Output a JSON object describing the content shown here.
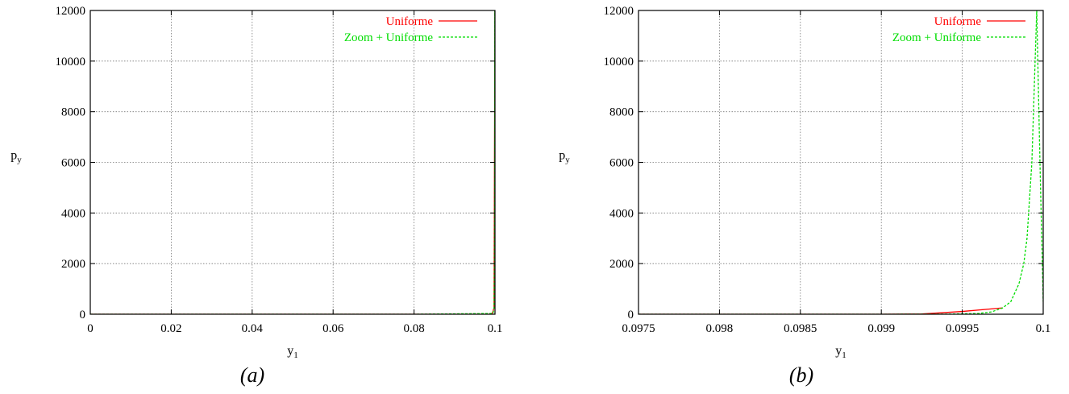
{
  "chart_data": [
    {
      "panel": "a",
      "type": "line",
      "caption": "(a)",
      "xlabel": "y",
      "xlabel_sub": "1",
      "ylabel": "p",
      "ylabel_sub": "y",
      "xlim": [
        0,
        0.1
      ],
      "ylim": [
        0,
        12000
      ],
      "xticks": [
        0,
        0.02,
        0.04,
        0.06,
        0.08,
        0.1
      ],
      "xtick_labels": [
        "0",
        "0.02",
        "0.04",
        "0.06",
        "0.08",
        "0.1"
      ],
      "yticks": [
        0,
        2000,
        4000,
        6000,
        8000,
        10000,
        12000
      ],
      "ytick_labels": [
        "0",
        "2000",
        "4000",
        "6000",
        "8000",
        "10000",
        "12000"
      ],
      "grid": true,
      "legend_position": "top-right",
      "series": [
        {
          "name": "Uniforme",
          "color": "#ff0000",
          "dash": "solid",
          "x": [
            0,
            0.02,
            0.04,
            0.06,
            0.08,
            0.099,
            0.09925,
            0.0995,
            0.09975,
            0.1
          ],
          "y": [
            0,
            0,
            0,
            0,
            0,
            0,
            10,
            110,
            250,
            12000
          ]
        },
        {
          "name": "Zoom + Uniforme",
          "color": "#00dd00",
          "dash": "dashed",
          "x": [
            0,
            0.02,
            0.04,
            0.06,
            0.08,
            0.0995,
            0.09975,
            0.09985,
            0.0999,
            0.09995,
            0.1
          ],
          "y": [
            0,
            0,
            0,
            0,
            0,
            30,
            250,
            1800,
            4500,
            12000,
            500
          ]
        }
      ]
    },
    {
      "panel": "b",
      "type": "line",
      "caption": "(b)",
      "xlabel": "y",
      "xlabel_sub": "1",
      "ylabel": "p",
      "ylabel_sub": "y",
      "xlim": [
        0.0975,
        0.1
      ],
      "ylim": [
        0,
        12000
      ],
      "xticks": [
        0.0975,
        0.098,
        0.0985,
        0.099,
        0.0995,
        0.1
      ],
      "xtick_labels": [
        "0.0975",
        "0.098",
        "0.0985",
        "0.099",
        "0.0995",
        "0.1"
      ],
      "yticks": [
        0,
        2000,
        4000,
        6000,
        8000,
        10000,
        12000
      ],
      "ytick_labels": [
        "0",
        "2000",
        "4000",
        "6000",
        "8000",
        "10000",
        "12000"
      ],
      "grid": true,
      "legend_position": "top-right",
      "series": [
        {
          "name": "Uniforme",
          "color": "#ff0000",
          "dash": "solid",
          "x": [
            0.0975,
            0.098,
            0.0985,
            0.099,
            0.09925,
            0.0995,
            0.09975
          ],
          "y": [
            0,
            0,
            0,
            0,
            10,
            110,
            250
          ]
        },
        {
          "name": "Zoom + Uniforme",
          "color": "#00dd00",
          "dash": "dashed",
          "x": [
            0.0975,
            0.098,
            0.0985,
            0.099,
            0.0994,
            0.0996,
            0.09968,
            0.09975,
            0.0998,
            0.09985,
            0.09988,
            0.0999,
            0.09993,
            0.09995,
            0.09996,
            0.09998,
            0.1
          ],
          "y": [
            0,
            0,
            0,
            0,
            5,
            30,
            90,
            250,
            500,
            1200,
            2000,
            3000,
            6000,
            10000,
            12000,
            6000,
            500
          ]
        }
      ]
    }
  ]
}
